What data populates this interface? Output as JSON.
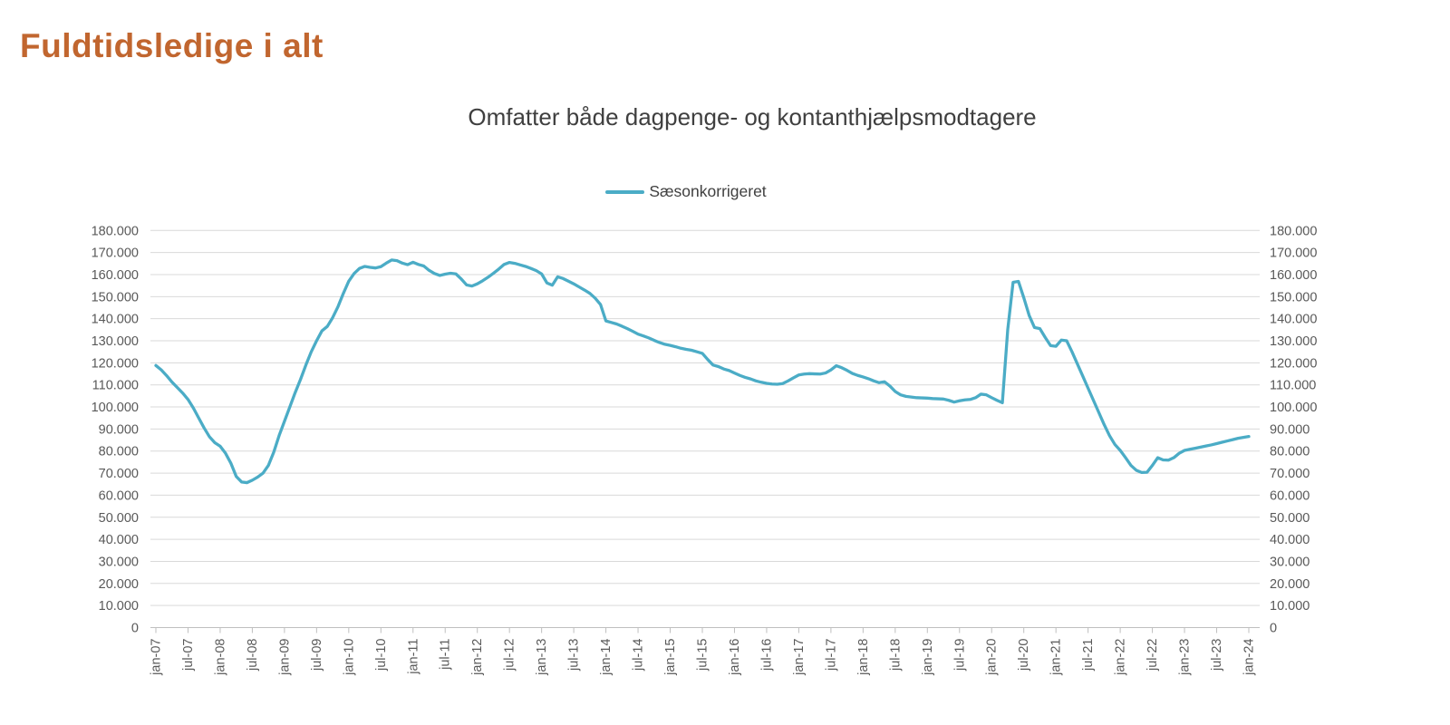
{
  "header": {
    "title": "Fuldtidsledige i alt",
    "title_color": "#C1662F"
  },
  "chart": {
    "title": "Omfatter både dagpenge- og kontanthjælpsmodtagere",
    "legend": [
      "Sæsonkorrigeret"
    ],
    "series_color": "#4BACC6",
    "axis_text_color": "#595959",
    "gridline_color": "#D9D9D9",
    "axis_line_color": "#BFBFBF"
  },
  "chart_data": {
    "type": "line",
    "title": "Omfatter både dagpenge- og kontanthjælpsmodtagere",
    "legend_entries": [
      "Sæsonkorrigeret"
    ],
    "legend_position": "top",
    "grid": true,
    "y_axis_sides": "both",
    "ylim": [
      0,
      180000
    ],
    "ytick_step": 10000,
    "ytick_labels": [
      "0",
      "10.000",
      "20.000",
      "30.000",
      "40.000",
      "50.000",
      "60.000",
      "70.000",
      "80.000",
      "90.000",
      "100.000",
      "110.000",
      "120.000",
      "130.000",
      "140.000",
      "150.000",
      "160.000",
      "170.000",
      "180.000"
    ],
    "x_frequency": "monthly",
    "x_start": "jan-07",
    "x_end": "jan-24",
    "x_tick_labels": [
      "jan-07",
      "jul-07",
      "jan-08",
      "jul-08",
      "jan-09",
      "jul-09",
      "jan-10",
      "jul-10",
      "jan-11",
      "jul-11",
      "jan-12",
      "jul-12",
      "jan-13",
      "jul-13",
      "jan-14",
      "jul-14",
      "jan-15",
      "jul-15",
      "jan-16",
      "jul-16",
      "jan-17",
      "jul-17",
      "jan-18",
      "jul-18",
      "jan-19",
      "jul-19",
      "jan-20",
      "jul-20",
      "jan-21",
      "jul-21",
      "jan-22",
      "jul-22",
      "jan-23",
      "jul-23",
      "jan-24"
    ],
    "series": [
      {
        "name": "Sæsonkorrigeret",
        "color": "#4BACC6",
        "values": [
          118800,
          116800,
          114200,
          111300,
          108800,
          106300,
          103400,
          99500,
          95000,
          90500,
          86500,
          83800,
          82200,
          79000,
          74500,
          68500,
          66000,
          65700,
          66800,
          68200,
          70000,
          73500,
          79500,
          87000,
          93500,
          100000,
          106500,
          112500,
          119000,
          125000,
          130000,
          134500,
          136500,
          140500,
          145500,
          151500,
          157000,
          160500,
          162800,
          163700,
          163300,
          163000,
          163600,
          165200,
          166600,
          166300,
          165200,
          164500,
          165600,
          164600,
          163900,
          161900,
          160500,
          159600,
          160200,
          160600,
          160300,
          158000,
          155300,
          154800,
          155800,
          157200,
          158800,
          160600,
          162500,
          164600,
          165500,
          165100,
          164400,
          163700,
          162800,
          161800,
          160300,
          156200,
          155200,
          159000,
          158200,
          157000,
          155800,
          154400,
          153000,
          151500,
          149300,
          146400,
          139000,
          138300,
          137600,
          136600,
          135500,
          134300,
          133000,
          132200,
          131300,
          130200,
          129200,
          128400,
          127900,
          127300,
          126600,
          126100,
          125700,
          125000,
          124300,
          121500,
          119000,
          118300,
          117200,
          116500,
          115400,
          114300,
          113400,
          112700,
          111800,
          111200,
          110700,
          110400,
          110300,
          110600,
          111800,
          113200,
          114500,
          114900,
          115100,
          115000,
          114900,
          115400,
          116800,
          118700,
          117800,
          116600,
          115200,
          114300,
          113600,
          112800,
          111800,
          111000,
          111400,
          109500,
          107000,
          105500,
          104800,
          104500,
          104200,
          104100,
          104000,
          103800,
          103700,
          103600,
          103000,
          102200,
          102800,
          103200,
          103400,
          104200,
          105800,
          105500,
          104200,
          103000,
          101900,
          135000,
          156500,
          156900,
          149500,
          141500,
          136000,
          135500,
          131500,
          127800,
          127500,
          130300,
          130000,
          125000,
          119500,
          114000,
          108500,
          103000,
          97500,
          92000,
          87000,
          83000,
          80300,
          77000,
          73500,
          71300,
          70300,
          70400,
          73500,
          77000,
          76000,
          75900,
          77000,
          79000,
          80300,
          80800,
          81300,
          81800,
          82300,
          82800,
          83400,
          84000,
          84600,
          85200,
          85800,
          86200,
          86600
        ]
      }
    ]
  }
}
